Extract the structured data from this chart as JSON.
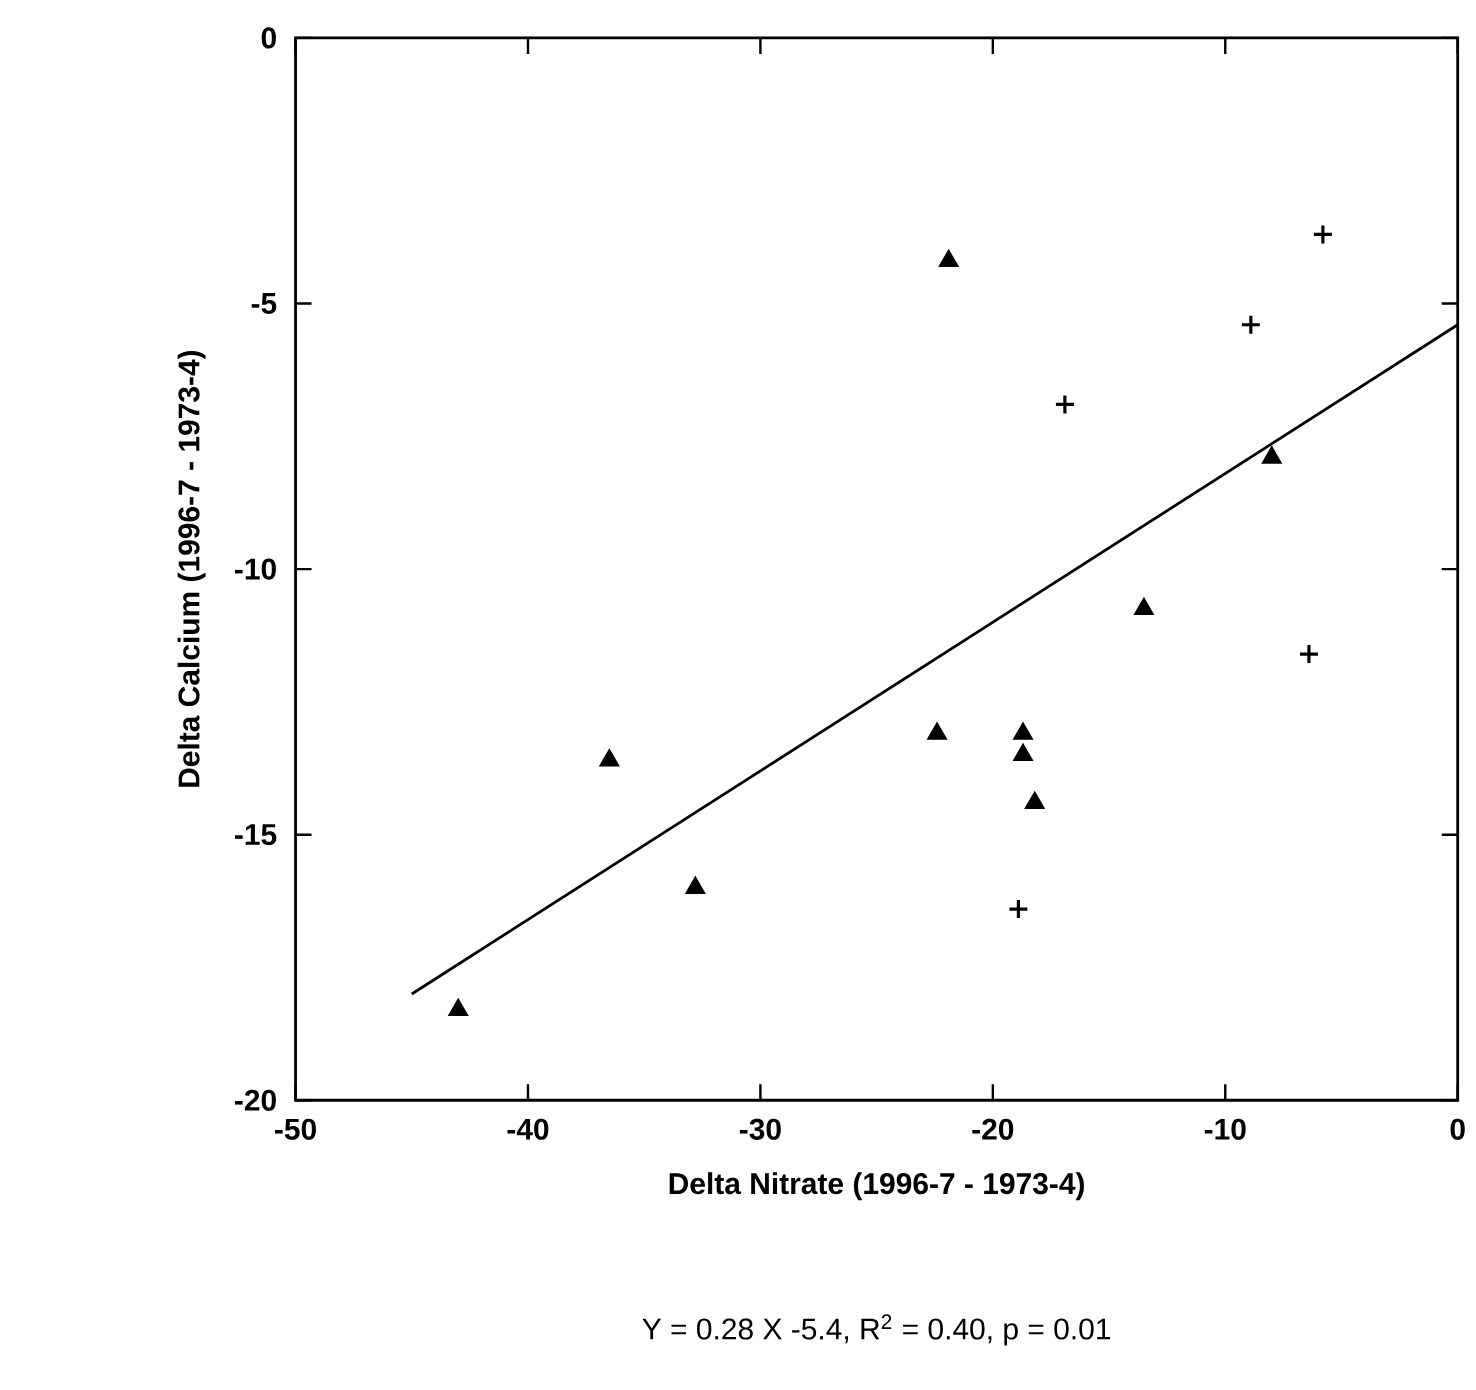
{
  "chart_data": {
    "type": "scatter",
    "xlabel": "Delta Nitrate (1996-7 - 1973-4)",
    "ylabel": "Delta Calcium (1996-7 - 1973-4)",
    "annotations": [
      "Y = 0.28 X -5.4, R$^{2}$ = 0.40, p = 0.01"
    ],
    "series": [
      {
        "marker": "triangle",
        "color": "#000000",
        "x": [
          -21.9,
          -32.8,
          -43.0
        ],
        "values": [
          -4.2,
          -16.0,
          -18.3
        ]
      },
      {
        "marker": "triangle",
        "color": "#000000",
        "x": [
          -36.5,
          -22.4,
          -18.7,
          -18.7,
          -18.2,
          -13.5,
          -8.0
        ],
        "values": [
          -13.6,
          -13.1,
          -13.1,
          -13.5,
          -14.4,
          -10.75,
          -7.9
        ]
      },
      {
        "marker": "cross",
        "color": "#000000",
        "x": [
          -5.8,
          -8.9,
          -16.9,
          -6.4,
          -18.9
        ],
        "values": [
          -3.7,
          -5.4,
          -6.9,
          -11.6,
          -16.4
        ]
      },
      {
        "type": "line",
        "line_style": "solid",
        "color": "#000000",
        "x": [
          -45,
          0
        ],
        "values": [
          -18.0,
          -5.4
        ]
      }
    ],
    "xlim": [
      -50,
      0
    ],
    "ylim": [
      -20,
      0
    ],
    "xticks": [
      -50,
      -40,
      -30,
      -20,
      -10,
      0
    ],
    "yticks": [
      -20,
      -15,
      -10,
      -5,
      0
    ],
    "grid": false
  }
}
